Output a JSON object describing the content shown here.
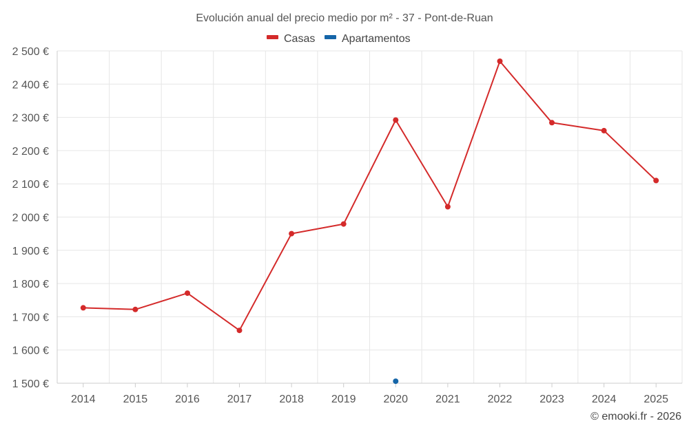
{
  "chart_data": {
    "type": "line",
    "title": "Evolución anual del precio medio por m² - 37 - Pont-de-Ruan",
    "categories": [
      "2014",
      "2015",
      "2016",
      "2017",
      "2018",
      "2019",
      "2020",
      "2021",
      "2022",
      "2023",
      "2024",
      "2025"
    ],
    "series": [
      {
        "name": "Casas",
        "color": "#d42a2a",
        "values": [
          1727,
          1722,
          1771,
          1659,
          1950,
          1979,
          2292,
          2031,
          2469,
          2284,
          2260,
          2110
        ]
      },
      {
        "name": "Apartamentos",
        "color": "#1565a8",
        "values": [
          null,
          null,
          null,
          null,
          null,
          null,
          1506,
          null,
          null,
          null,
          null,
          null
        ]
      }
    ],
    "ylim": [
      1500,
      2500
    ],
    "yticks": [
      1500,
      1600,
      1700,
      1800,
      1900,
      2000,
      2100,
      2200,
      2300,
      2400,
      2500
    ],
    "ytick_labels": [
      "1 500 €",
      "1 600 €",
      "1 700 €",
      "1 800 €",
      "1 900 €",
      "2 000 €",
      "2 100 €",
      "2 200 €",
      "2 300 €",
      "2 400 €",
      "2 500 €"
    ],
    "grid": true,
    "legend_position": "top-center"
  },
  "credit": "© emooki.fr - 2026"
}
